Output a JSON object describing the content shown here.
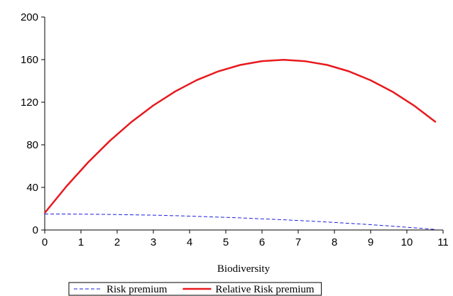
{
  "chart_data": {
    "type": "line",
    "x_label": "Biodiversity",
    "x": [
      0,
      0.6,
      1.2,
      1.8,
      2.4,
      3.0,
      3.6,
      4.2,
      4.8,
      5.4,
      6.0,
      6.6,
      7.2,
      7.8,
      8.4,
      9.0,
      9.6,
      10.2,
      10.8
    ],
    "series": [
      {
        "name": "Risk premium",
        "color": "#1f1fdc",
        "dashed": true,
        "width": 1,
        "values": [
          15,
          15.0,
          14.8,
          14.6,
          14.3,
          13.9,
          13.4,
          12.8,
          12.1,
          11.4,
          10.5,
          9.6,
          8.6,
          7.5,
          6.3,
          5.0,
          3.6,
          2.1,
          0.5
        ]
      },
      {
        "name": "Relative Risk premium",
        "color": "#e8191e",
        "dashed": false,
        "width": 2.5,
        "values": [
          16,
          41.0,
          63.6,
          83.8,
          101.6,
          117.0,
          130.1,
          140.8,
          149.1,
          155.0,
          158.6,
          159.8,
          158.5,
          155.0,
          149.0,
          140.6,
          129.9,
          116.8,
          101.3
        ]
      }
    ],
    "xlim": [
      0,
      11
    ],
    "xticks": [
      0,
      1,
      2,
      3,
      4,
      5,
      6,
      7,
      8,
      9,
      10,
      11
    ],
    "ylim": [
      0,
      200
    ],
    "yticks": [
      0,
      40,
      80,
      120,
      160,
      200
    ],
    "legend": "bottom"
  }
}
